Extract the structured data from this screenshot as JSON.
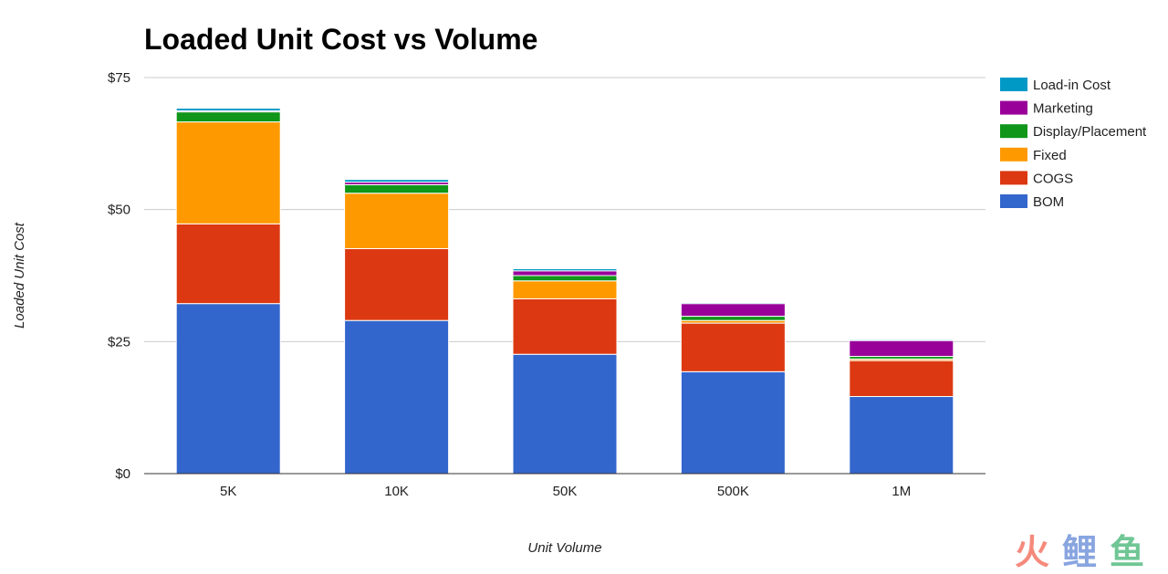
{
  "chart_data": {
    "type": "bar",
    "stacked": true,
    "title": "Loaded Unit Cost vs Volume",
    "xlabel": "Unit Volume",
    "ylabel": "Loaded Unit Cost",
    "ylim": [
      0,
      75
    ],
    "yticks": [
      {
        "value": 0,
        "label": "$0"
      },
      {
        "value": 25,
        "label": "$25"
      },
      {
        "value": 50,
        "label": "$50"
      },
      {
        "value": 75,
        "label": "$75"
      }
    ],
    "grid": true,
    "legend_position": "right",
    "categories": [
      "5K",
      "10K",
      "50K",
      "500K",
      "1M"
    ],
    "series": [
      {
        "name": "BOM",
        "color": "#3366cc",
        "values": [
          32.2,
          29.0,
          22.6,
          19.3,
          14.6
        ]
      },
      {
        "name": "COGS",
        "color": "#dc3912",
        "values": [
          15.1,
          13.6,
          10.5,
          9.2,
          6.8
        ]
      },
      {
        "name": "Fixed",
        "color": "#ff9900",
        "values": [
          19.3,
          10.5,
          3.4,
          0.5,
          0.3
        ]
      },
      {
        "name": "Display/Placement",
        "color": "#109618",
        "values": [
          1.9,
          1.6,
          1.0,
          0.8,
          0.5
        ]
      },
      {
        "name": "Marketing",
        "color": "#990099",
        "values": [
          0.2,
          0.5,
          0.9,
          2.4,
          3.0
        ]
      },
      {
        "name": "Load-in Cost",
        "color": "#0099c6",
        "values": [
          0.5,
          0.5,
          0.4,
          0.2,
          0.2
        ]
      }
    ]
  },
  "watermark": {
    "text": "火鲤鱼",
    "colors": [
      "#f26d5b",
      "#6a8fd8",
      "#4cb87a"
    ]
  }
}
